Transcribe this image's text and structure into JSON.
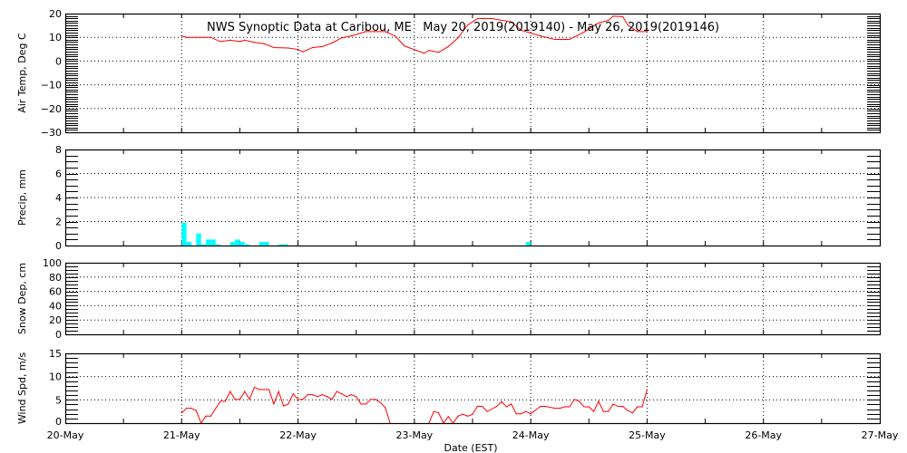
{
  "title": "NWS Synoptic Data at Caribou, ME   May 20, 2019(2019140) - May 26, 2019(2019146)",
  "colors": {
    "line": "#ff0000",
    "bars": "#00ffff",
    "axes": "#000000",
    "background": "#ffffff"
  },
  "chart_data": [
    {
      "type": "line",
      "ylabel": "Air Temp, Deg C",
      "ylim": [
        -30,
        20
      ],
      "yticks": [
        "20",
        "10",
        "0",
        "−10",
        "−20",
        "−30"
      ],
      "grid": true,
      "x": [
        "2019-05-21 00:00",
        "2019-05-21 01:00",
        "2019-05-21 06:00",
        "2019-05-21 08:00",
        "2019-05-21 10:00",
        "2019-05-21 12:00",
        "2019-05-21 13:00",
        "2019-05-21 15:00",
        "2019-05-21 17:00",
        "2019-05-21 19:00",
        "2019-05-21 22:00",
        "2019-05-22 00:00",
        "2019-05-22 01:00",
        "2019-05-22 03:00",
        "2019-05-22 05:00",
        "2019-05-22 07:00",
        "2019-05-22 09:00",
        "2019-05-22 11:00",
        "2019-05-22 14:00",
        "2019-05-22 18:00",
        "2019-05-22 20:00",
        "2019-05-22 22:00",
        "2019-05-23 02:00",
        "2019-05-23 03:00",
        "2019-05-23 05:00",
        "2019-05-23 07:00",
        "2019-05-23 09:00",
        "2019-05-23 11:00",
        "2019-05-23 13:00",
        "2019-05-23 16:00",
        "2019-05-23 20:00",
        "2019-05-23 22:00",
        "2019-05-24 02:00",
        "2019-05-24 05:00",
        "2019-05-24 08:00",
        "2019-05-24 11:00",
        "2019-05-24 14:00",
        "2019-05-24 16:00",
        "2019-05-24 17:00",
        "2019-05-24 19:00",
        "2019-05-24 20:00",
        "2019-05-24 22:00",
        "2019-05-25 00:00"
      ],
      "values": [
        10.6,
        10.0,
        10.0,
        8.2,
        8.8,
        8.2,
        8.8,
        7.9,
        7.3,
        5.7,
        5.5,
        4.9,
        3.9,
        5.7,
        6.1,
        7.6,
        9.8,
        10.6,
        12.4,
        12.4,
        10.6,
        6.3,
        3.3,
        4.5,
        3.7,
        6.1,
        9.8,
        15.2,
        17.9,
        17.9,
        16.5,
        13.0,
        10.6,
        9.1,
        9.1,
        12.2,
        16.1,
        17.1,
        18.9,
        18.7,
        15.2,
        12.4,
        12.4
      ]
    },
    {
      "type": "bar",
      "ylabel": "Precip, mm",
      "ylim": [
        0,
        8
      ],
      "yticks": [
        "8",
        "6",
        "4",
        "2",
        "0"
      ],
      "grid": true,
      "x": [
        "2019-05-21 00:00",
        "2019-05-21 01:00",
        "2019-05-21 03:00",
        "2019-05-21 04:00",
        "2019-05-21 05:00",
        "2019-05-21 06:00",
        "2019-05-21 07:00",
        "2019-05-21 10:00",
        "2019-05-21 11:00",
        "2019-05-21 12:00",
        "2019-05-21 13:00",
        "2019-05-21 16:00",
        "2019-05-21 17:00",
        "2019-05-21 20:00",
        "2019-05-21 21:00",
        "2019-05-23 23:00"
      ],
      "values": [
        1.9,
        0.3,
        1.0,
        0.1,
        0.5,
        0.5,
        0.1,
        0.3,
        0.5,
        0.3,
        0.1,
        0.3,
        0.3,
        0.1,
        0.1,
        0.3
      ]
    },
    {
      "type": "line",
      "ylabel": "Snow Dep, cm",
      "ylim": [
        0,
        100
      ],
      "yticks": [
        "100",
        "80",
        "60",
        "40",
        "20",
        "0"
      ],
      "grid": true,
      "x": [],
      "values": []
    },
    {
      "type": "line",
      "ylabel": "Wind Spd, m/s",
      "ylim": [
        0,
        15
      ],
      "yticks": [
        "15",
        "10",
        "5",
        "0"
      ],
      "grid": true,
      "x": [
        "2019-05-21 00:00",
        "2019-05-21 01:00",
        "2019-05-21 02:00",
        "2019-05-21 03:00",
        "2019-05-21 04:00",
        "2019-05-21 05:00",
        "2019-05-21 06:00",
        "2019-05-21 08:00",
        "2019-05-21 09:00",
        "2019-05-21 10:00",
        "2019-05-21 11:00",
        "2019-05-21 12:00",
        "2019-05-21 13:00",
        "2019-05-21 14:00",
        "2019-05-21 15:00",
        "2019-05-21 16:00",
        "2019-05-21 18:00",
        "2019-05-21 19:00",
        "2019-05-21 20:00",
        "2019-05-21 21:00",
        "2019-05-21 22:00",
        "2019-05-21 23:00",
        "2019-05-22 00:00",
        "2019-05-22 01:00",
        "2019-05-22 02:00",
        "2019-05-22 03:00",
        "2019-05-22 04:00",
        "2019-05-22 05:00",
        "2019-05-22 06:00",
        "2019-05-22 07:00",
        "2019-05-22 08:00",
        "2019-05-22 09:00",
        "2019-05-22 10:00",
        "2019-05-22 11:00",
        "2019-05-22 12:00",
        "2019-05-22 13:00",
        "2019-05-22 14:00",
        "2019-05-22 15:00",
        "2019-05-22 16:00",
        "2019-05-22 17:00",
        "2019-05-22 18:00",
        "2019-05-22 19:00",
        "2019-05-23 03:00",
        "2019-05-23 04:00",
        "2019-05-23 05:00",
        "2019-05-23 06:00",
        "2019-05-23 07:00",
        "2019-05-23 08:00",
        "2019-05-23 09:00",
        "2019-05-23 10:00",
        "2019-05-23 11:00",
        "2019-05-23 12:00",
        "2019-05-23 13:00",
        "2019-05-23 14:00",
        "2019-05-23 15:00",
        "2019-05-23 17:00",
        "2019-05-23 18:00",
        "2019-05-23 19:00",
        "2019-05-23 20:00",
        "2019-05-23 21:00",
        "2019-05-23 22:00",
        "2019-05-23 23:00",
        "2019-05-24 00:00",
        "2019-05-24 02:00",
        "2019-05-24 03:00",
        "2019-05-24 05:00",
        "2019-05-24 06:00",
        "2019-05-24 07:00",
        "2019-05-24 08:00",
        "2019-05-24 09:00",
        "2019-05-24 10:00",
        "2019-05-24 11:00",
        "2019-05-24 12:00",
        "2019-05-24 13:00",
        "2019-05-24 14:00",
        "2019-05-24 15:00",
        "2019-05-24 16:00",
        "2019-05-24 17:00",
        "2019-05-24 18:00",
        "2019-05-24 19:00",
        "2019-05-24 20:00",
        "2019-05-24 21:00",
        "2019-05-24 22:00",
        "2019-05-24 23:00",
        "2019-05-25 00:00"
      ],
      "values": [
        2.2,
        3.2,
        3.2,
        2.7,
        0,
        1.5,
        1.5,
        4.7,
        4.7,
        6.8,
        5.1,
        5.1,
        6.8,
        5.1,
        7.7,
        7.2,
        7.2,
        4.1,
        6.8,
        3.7,
        4.1,
        6.3,
        5.1,
        5.1,
        6.1,
        6.1,
        5.7,
        6.1,
        5.7,
        5.1,
        6.8,
        6.3,
        5.7,
        6.1,
        5.7,
        4.1,
        4.1,
        5.1,
        5.1,
        4.4,
        3.3,
        0,
        0,
        2.5,
        2.2,
        0,
        1.4,
        0,
        1.5,
        1.9,
        1.5,
        1.9,
        3.6,
        3.6,
        2.5,
        3.6,
        4.6,
        3.5,
        4.1,
        2.0,
        2.0,
        2.5,
        2.0,
        3.6,
        3.6,
        3.2,
        3.2,
        3.5,
        3.5,
        5.1,
        4.7,
        3.5,
        3.5,
        2.5,
        4.7,
        2.5,
        2.5,
        4.1,
        3.6,
        3.6,
        2.7,
        2.2,
        3.5,
        3.5,
        7.2
      ]
    }
  ],
  "x_axis": {
    "xlabel": "Date (EST)",
    "range": [
      "2019-05-20 00:00",
      "2019-05-27 00:00"
    ],
    "ticks": [
      "20-May",
      "21-May",
      "22-May",
      "23-May",
      "24-May",
      "25-May",
      "26-May",
      "27-May"
    ]
  }
}
